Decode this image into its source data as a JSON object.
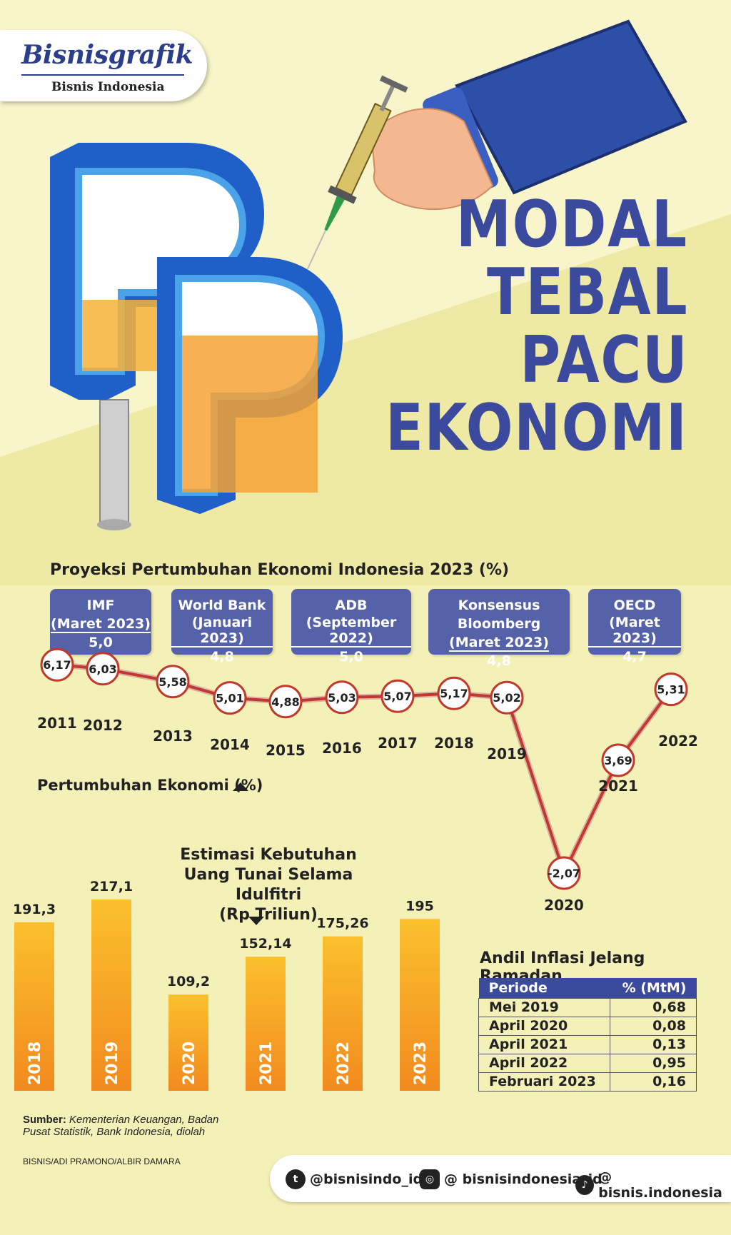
{
  "brand": {
    "name": "Bisnisgrafik",
    "sub": "Bisnis Indonesia"
  },
  "title": {
    "line1": "MODAL",
    "line2": "TEBAL",
    "line3": "PACU",
    "line4": "EKONOMI"
  },
  "illustration": {
    "sign_text": "Rp"
  },
  "projections": {
    "title": "Proyeksi Pertumbuhan Ekonomi Indonesia 2023 (%)",
    "items": [
      {
        "org": "IMF",
        "date": "(Maret 2023)",
        "value": "5,0"
      },
      {
        "org": "World Bank",
        "date": "(Januari 2023)",
        "value": "4,8"
      },
      {
        "org": "ADB",
        "date": "(September 2022)",
        "value": "5,0"
      },
      {
        "org": "Konsensus Bloomberg",
        "date": "(Maret 2023)",
        "value": "4,8"
      },
      {
        "org": "OECD",
        "date": "(Maret 2023)",
        "value": "4,7"
      }
    ]
  },
  "chart_data": [
    {
      "type": "line",
      "title": "Pertumbuhan Ekonomi (%)",
      "x": [
        "2011",
        "2012",
        "2013",
        "2014",
        "2015",
        "2016",
        "2017",
        "2018",
        "2019",
        "2020",
        "2021",
        "2022"
      ],
      "values": [
        6.17,
        6.03,
        5.58,
        5.01,
        4.88,
        5.03,
        5.07,
        5.17,
        5.02,
        -2.07,
        3.69,
        5.31
      ],
      "labels": [
        "6,17",
        "6,03",
        "5,58",
        "5,01",
        "4,88",
        "5,03",
        "5,07",
        "5,17",
        "5,02",
        "-2,07",
        "3,69",
        "5,31"
      ],
      "ylim": [
        -2.5,
        6.5
      ],
      "color": "#c0392b"
    },
    {
      "type": "bar",
      "title": "Estimasi Kebutuhan Uang Tunai Selama Idulfitri (Rp Triliun)",
      "title_lines": [
        "Estimasi Kebutuhan",
        "Uang Tunai Selama Idulfitri",
        "(Rp Triliun)"
      ],
      "categories": [
        "2018",
        "2019",
        "2020",
        "2021",
        "2022",
        "2023"
      ],
      "values": [
        191.3,
        217.1,
        109.2,
        152.14,
        175.26,
        195
      ],
      "labels": [
        "191,3",
        "217,1",
        "109,2",
        "152,14",
        "175,26",
        "195"
      ],
      "ylim": [
        0,
        217.1
      ],
      "color": "#f5a623"
    }
  ],
  "inflation": {
    "title": "Andil Inflasi Jelang Ramadan",
    "headers": [
      "Periode",
      "% (MtM)"
    ],
    "rows": [
      {
        "period": "Mei 2019",
        "value": "0,68"
      },
      {
        "period": "April 2020",
        "value": "0,08"
      },
      {
        "period": "April 2021",
        "value": "0,13"
      },
      {
        "period": "April 2022",
        "value": "0,95"
      },
      {
        "period": "Februari 2023",
        "value": "0,16"
      }
    ]
  },
  "source": {
    "label": "Sumber:",
    "text": "Kementerian Keuangan, Badan Pusat Statistik, Bank Indonesia, diolah",
    "credit": "BISNIS/ADI PRAMONO/ALBIR DAMARA"
  },
  "social": {
    "twitter": "@bisnisindo_id",
    "instagram": "@ bisnisindonesia_id",
    "tiktok": "@ bisnis.indonesia"
  },
  "colors": {
    "accent": "#3b4a9c",
    "line": "#c0392b",
    "bar": "#f5a623",
    "bg": "#f4f1b8"
  }
}
